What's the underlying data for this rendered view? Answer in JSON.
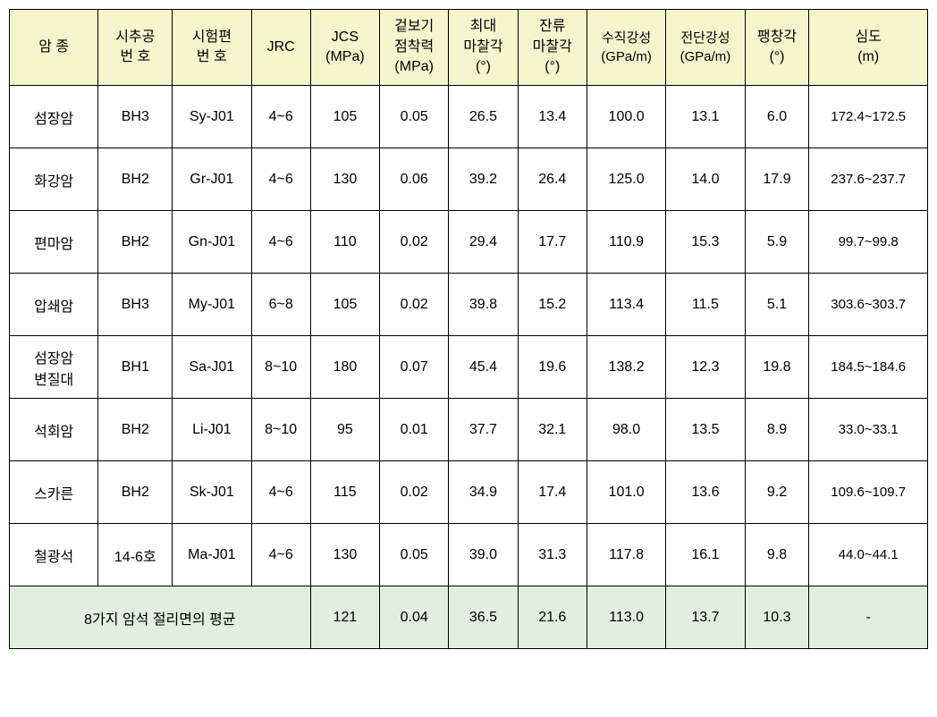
{
  "table": {
    "header_bg": "#f6f5ce",
    "summary_bg": "#e1f0de",
    "border_color": "#000000",
    "columns": [
      {
        "label": "암 종"
      },
      {
        "label": "시추공\n번 호"
      },
      {
        "label": "시험편\n번 호"
      },
      {
        "label": "JRC"
      },
      {
        "label": "JCS\n(MPa)"
      },
      {
        "label": "겉보기\n점착력\n(MPa)"
      },
      {
        "label": "최대\n마찰각\n(°)"
      },
      {
        "label": "잔류\n마찰각\n(°)"
      },
      {
        "label": "수직강성\n(GPa/m)"
      },
      {
        "label": "전단강성\n(GPa/m)"
      },
      {
        "label": "팽창각\n(°)"
      },
      {
        "label": "심도\n(m)"
      }
    ],
    "rows": [
      [
        "섬장암",
        "BH3",
        "Sy-J01",
        "4~6",
        "105",
        "0.05",
        "26.5",
        "13.4",
        "100.0",
        "13.1",
        "6.0",
        "172.4~172.5"
      ],
      [
        "화강암",
        "BH2",
        "Gr-J01",
        "4~6",
        "130",
        "0.06",
        "39.2",
        "26.4",
        "125.0",
        "14.0",
        "17.9",
        "237.6~237.7"
      ],
      [
        "편마암",
        "BH2",
        "Gn-J01",
        "4~6",
        "110",
        "0.02",
        "29.4",
        "17.7",
        "110.9",
        "15.3",
        "5.9",
        "99.7~99.8"
      ],
      [
        "압쇄암",
        "BH3",
        "My-J01",
        "6~8",
        "105",
        "0.02",
        "39.8",
        "15.2",
        "113.4",
        "11.5",
        "5.1",
        "303.6~303.7"
      ],
      [
        "섬장암\n변질대",
        "BH1",
        "Sa-J01",
        "8~10",
        "180",
        "0.07",
        "45.4",
        "19.6",
        "138.2",
        "12.3",
        "19.8",
        "184.5~184.6"
      ],
      [
        "석회암",
        "BH2",
        "Li-J01",
        "8~10",
        "95",
        "0.01",
        "37.7",
        "32.1",
        "98.0",
        "13.5",
        "8.9",
        "33.0~33.1"
      ],
      [
        "스카른",
        "BH2",
        "Sk-J01",
        "4~6",
        "115",
        "0.02",
        "34.9",
        "17.4",
        "101.0",
        "13.6",
        "9.2",
        "109.6~109.7"
      ],
      [
        "철광석",
        "14-6호",
        "Ma-J01",
        "4~6",
        "130",
        "0.05",
        "39.0",
        "31.3",
        "117.8",
        "16.1",
        "9.8",
        "44.0~44.1"
      ]
    ],
    "summary": {
      "label": "8가지 암석 절리면의 평균",
      "values": [
        "121",
        "0.04",
        "36.5",
        "21.6",
        "113.0",
        "13.7",
        "10.3",
        "-"
      ]
    }
  }
}
